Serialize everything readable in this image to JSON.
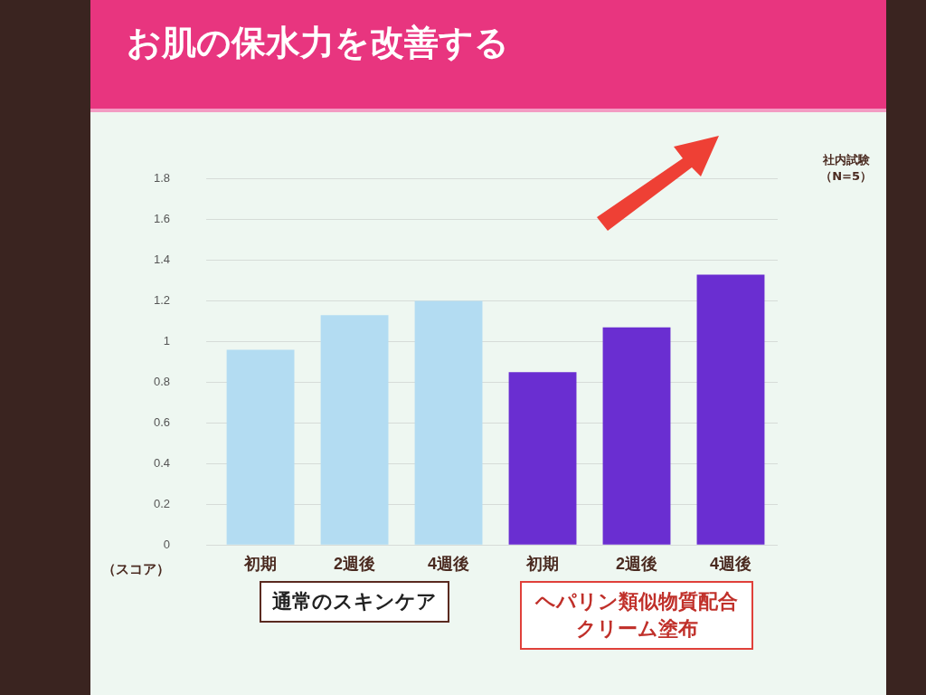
{
  "chart_data": {
    "type": "bar",
    "title": "お肌の保水力を改善する",
    "ylabel": "（スコア）",
    "categories": [
      "初期",
      "2週後",
      "4週後",
      "初期",
      "2週後",
      "4週後"
    ],
    "series": [
      {
        "name": "通常のスキンケア",
        "color": "#b3dcf2",
        "values": [
          0.96,
          1.13,
          1.2,
          null,
          null,
          null
        ]
      },
      {
        "name": "ヘパリン類似物質配合クリーム塗布",
        "color": "#6a2ed1",
        "values": [
          null,
          null,
          null,
          0.85,
          1.07,
          1.33
        ]
      }
    ],
    "ylim": [
      0,
      1.8
    ],
    "yticks": [
      0,
      0.2,
      0.4,
      0.6,
      0.8,
      1,
      1.2,
      1.4,
      1.6,
      1.8
    ],
    "grid": "y",
    "legend": false,
    "annotations": [
      "社内試験",
      "（N=5）"
    ]
  }
}
